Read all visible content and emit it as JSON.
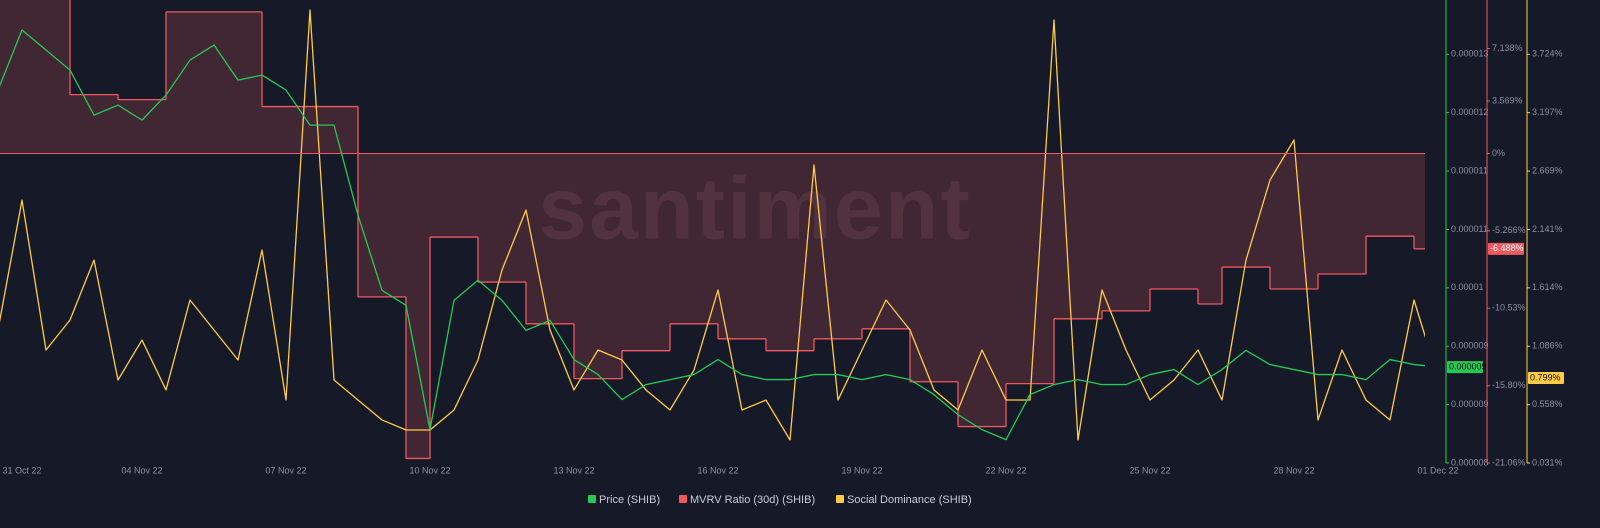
{
  "chart_data": {
    "type": "line",
    "watermark": "santiment",
    "categories": [
      "31 Oct 22",
      null,
      null,
      null,
      null,
      null,
      null,
      null,
      "04 Nov 22",
      null,
      null,
      null,
      null,
      null,
      "07 Nov 22",
      null,
      null,
      null,
      null,
      null,
      "10 Nov 22",
      null,
      null,
      null,
      null,
      null,
      "13 Nov 22",
      null,
      null,
      null,
      null,
      null,
      "16 Nov 22",
      null,
      null,
      null,
      null,
      null,
      "19 Nov 22",
      null,
      null,
      null,
      null,
      null,
      "22 Nov 22",
      null,
      null,
      null,
      null,
      null,
      "25 Nov 22",
      null,
      null,
      null,
      null,
      null,
      "28 Nov 22",
      null,
      null,
      null,
      null,
      null,
      "01 Dec 22"
    ],
    "ylim": [
      7.95e-06,
      1.35e-05
    ],
    "yticks": [
      {
        "value": 7.95e-06,
        "label": "0.000008"
      },
      {
        "value": 8.65e-06,
        "label": "0.000009"
      },
      {
        "value": 9.35e-06,
        "label": "0.000009"
      },
      {
        "value": 1.005e-05,
        "label": "0.00001"
      },
      {
        "value": 1.075e-05,
        "label": "0.000011"
      },
      {
        "value": 1.145e-05,
        "label": "0.000011"
      },
      {
        "value": 1.215e-05,
        "label": "0.000012"
      },
      {
        "value": 1.285e-05,
        "label": "0.000013"
      }
    ],
    "y2lim": [
      -21.06,
      10.44
    ],
    "y2ticks": [
      {
        "value": -21.06,
        "label": "-21.06%"
      },
      {
        "value": -15.8,
        "label": "-15.80%"
      },
      {
        "value": -10.53,
        "label": "-10.53%"
      },
      {
        "value": -5.266,
        "label": "-5.266%"
      },
      {
        "value": 0,
        "label": "0%"
      },
      {
        "value": 3.569,
        "label": "3.569%"
      },
      {
        "value": 7.138,
        "label": "7.138%"
      }
    ],
    "y3lim": [
      0.031,
      4.215
    ],
    "y3ticks": [
      {
        "value": 0.031,
        "label": "0.031%"
      },
      {
        "value": 0.558,
        "label": "0.558%"
      },
      {
        "value": 1.086,
        "label": "1.086%"
      },
      {
        "value": 1.614,
        "label": "1.614%"
      },
      {
        "value": 2.141,
        "label": "2.141%"
      },
      {
        "value": 2.669,
        "label": "2.669%"
      },
      {
        "value": 3.197,
        "label": "3.197%"
      },
      {
        "value": 3.724,
        "label": "3.724%"
      }
    ],
    "series": [
      {
        "name": "Price (SHIB)",
        "color": "#26c953",
        "axis": "y",
        "style": "line",
        "last_label": "0.000009",
        "values": [
          1.242e-05,
          1.242e-05,
          1.242e-05,
          1.314e-05,
          1.29e-05,
          1.266e-05,
          1.212e-05,
          1.224e-05,
          1.206e-05,
          1.236e-05,
          1.278e-05,
          1.296e-05,
          1.254e-05,
          1.26e-05,
          1.242e-05,
          1.2e-05,
          1.2e-05,
          1.092e-05,
          1.002e-05,
          9.84e-06,
          8.35e-06,
          9.9e-06,
          1.014e-05,
          9.9e-06,
          9.54e-06,
          9.66e-06,
          9.19e-06,
          9.01e-06,
          8.71e-06,
          8.89e-06,
          8.95e-06,
          9.01e-06,
          9.19e-06,
          9.01e-06,
          8.95e-06,
          8.95e-06,
          9.01e-06,
          9.01e-06,
          8.95e-06,
          9.01e-06,
          8.95e-06,
          8.77e-06,
          8.53e-06,
          8.35e-06,
          8.23e-06,
          8.77e-06,
          8.89e-06,
          8.95e-06,
          8.89e-06,
          8.89e-06,
          9.01e-06,
          9.07e-06,
          8.89e-06,
          9.07e-06,
          9.3e-06,
          9.13e-06,
          9.07e-06,
          9.01e-06,
          9.01e-06,
          8.95e-06,
          9.19e-06,
          9.13e-06,
          9.1e-06
        ]
      },
      {
        "name": "MVRV Ratio (30d) (SHIB)",
        "color": "#f0585e",
        "axis": "y2",
        "style": "step",
        "last_label": "-6.488%",
        "values": [
          11,
          11,
          11,
          11,
          11,
          4.0,
          4.0,
          3.66,
          3.66,
          9.63,
          9.63,
          9.63,
          9.63,
          3.19,
          3.19,
          3.19,
          3.19,
          -9.76,
          -9.76,
          -20.75,
          -5.69,
          -5.69,
          -8.75,
          -8.75,
          -11.59,
          -11.59,
          -15.32,
          -15.32,
          -13.42,
          -13.42,
          -11.59,
          -11.59,
          -12.61,
          -12.61,
          -13.42,
          -13.42,
          -12.61,
          -12.61,
          -11.93,
          -11.93,
          -15.53,
          -15.53,
          -18.58,
          -18.58,
          -15.66,
          -15.66,
          -11.25,
          -11.25,
          -10.71,
          -10.71,
          -9.22,
          -9.22,
          -10.24,
          -7.73,
          -7.73,
          -9.22,
          -9.22,
          -8.2,
          -8.2,
          -5.63,
          -5.63,
          -6.488,
          -6.488
        ]
      },
      {
        "name": "Social Dominance (SHIB)",
        "color": "#ffcb47",
        "axis": "y3",
        "style": "line",
        "last_label": "0.799%",
        "values": [
          1.233,
          1.233,
          1.233,
          2.407,
          1.052,
          1.323,
          1.865,
          0.781,
          1.142,
          0.691,
          1.504,
          1.233,
          0.962,
          1.956,
          0.6,
          4.124,
          0.781,
          0.6,
          0.42,
          0.329,
          0.329,
          0.51,
          0.962,
          1.775,
          2.317,
          1.233,
          0.691,
          1.052,
          0.962,
          0.691,
          0.51,
          0.871,
          1.594,
          0.51,
          0.6,
          0.239,
          2.724,
          0.6,
          1.052,
          1.504,
          1.233,
          0.691,
          0.51,
          1.052,
          0.6,
          0.6,
          4.034,
          0.239,
          1.594,
          1.052,
          0.6,
          0.781,
          1.052,
          0.6,
          1.865,
          2.588,
          2.95,
          0.42,
          1.052,
          0.6,
          0.42,
          1.504,
          0.799
        ]
      }
    ]
  }
}
